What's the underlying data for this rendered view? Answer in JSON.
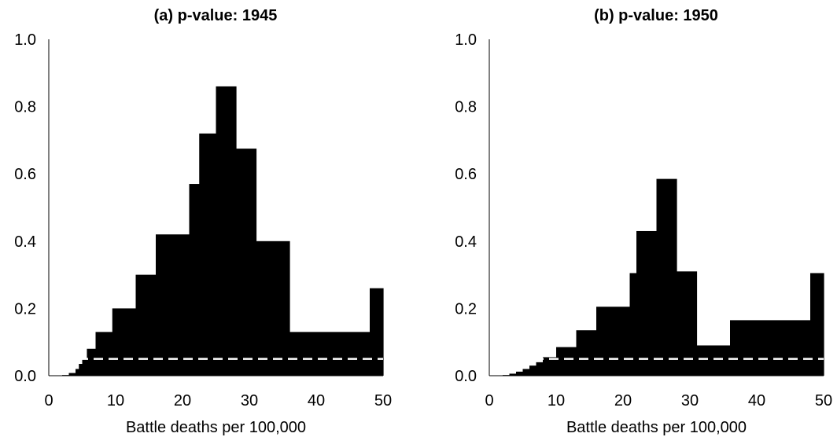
{
  "chart_data": [
    {
      "type": "area",
      "title": "(a) p-value: 1945",
      "xlabel": "Battle deaths per 100,000",
      "ylabel": "",
      "xlim": [
        0,
        50
      ],
      "ylim": [
        0,
        1.0
      ],
      "xticks": [
        "0",
        "10",
        "20",
        "30",
        "40",
        "50"
      ],
      "yticks": [
        "0.0",
        "0.2",
        "0.4",
        "0.6",
        "0.8",
        "1.0"
      ],
      "threshold": 0.05,
      "series": [
        {
          "x": [
            0,
            2,
            3,
            4,
            4.5,
            5,
            5.7,
            7,
            9.5,
            13,
            16,
            21,
            22.5,
            25,
            28,
            31,
            36,
            48,
            50
          ],
          "values": [
            0,
            0.002,
            0.008,
            0.02,
            0.035,
            0.05,
            0.08,
            0.13,
            0.2,
            0.3,
            0.42,
            0.57,
            0.72,
            0.86,
            0.675,
            0.4,
            0.13,
            0.26,
            0.26
          ]
        }
      ]
    },
    {
      "type": "area",
      "title": "(b) p-value: 1950",
      "xlabel": "Battle deaths per 100,000",
      "ylabel": "",
      "xlim": [
        0,
        50
      ],
      "ylim": [
        0,
        1.0
      ],
      "xticks": [
        "0",
        "10",
        "20",
        "30",
        "40",
        "50"
      ],
      "yticks": [
        "0.0",
        "0.2",
        "0.4",
        "0.6",
        "0.8",
        "1.0"
      ],
      "threshold": 0.05,
      "series": [
        {
          "x": [
            0,
            2,
            3,
            4,
            5,
            6,
            7,
            8,
            10,
            13,
            16,
            21,
            22,
            25,
            28,
            31,
            36,
            48,
            50
          ],
          "values": [
            0,
            0.002,
            0.006,
            0.012,
            0.02,
            0.03,
            0.04,
            0.055,
            0.085,
            0.135,
            0.205,
            0.305,
            0.43,
            0.585,
            0.31,
            0.09,
            0.165,
            0.305,
            0.305
          ]
        }
      ]
    }
  ]
}
